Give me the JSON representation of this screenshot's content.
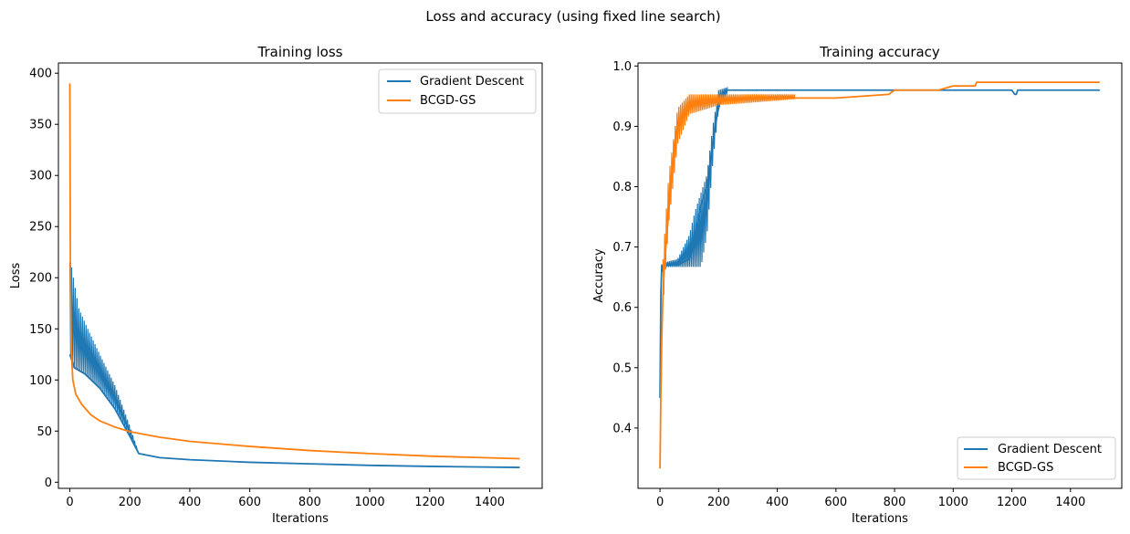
{
  "figure": {
    "suptitle": "Loss and accuracy (using fixed line search)"
  },
  "chart_data": [
    {
      "type": "line",
      "title": "Training loss",
      "xlabel": "Iterations",
      "ylabel": "Loss",
      "xlim": [
        -38,
        1575
      ],
      "ylim": [
        -6,
        410
      ],
      "xticks": [
        0,
        200,
        400,
        600,
        800,
        1000,
        1200,
        1400
      ],
      "yticks": [
        0,
        50,
        100,
        150,
        200,
        250,
        300,
        350,
        400
      ],
      "legend": "top-right",
      "series": [
        {
          "name": "Gradient Descent",
          "color": "#1f77b4",
          "x": [
            0,
            15,
            50,
            100,
            150,
            200,
            230,
            300,
            400,
            600,
            800,
            1000,
            1200,
            1500
          ],
          "y": [
            125,
            112,
            106,
            92,
            72,
            45,
            28,
            24,
            22,
            19.5,
            18,
            16.5,
            15.5,
            14.5
          ],
          "oscillation": {
            "x_end": 230,
            "upper": [
              [
                3,
                215
              ],
              [
                30,
                170
              ],
              [
                60,
                150
              ],
              [
                100,
                125
              ],
              [
                150,
                95
              ],
              [
                200,
                55
              ],
              [
                230,
                28
              ]
            ]
          }
        },
        {
          "name": "BCGD-GS",
          "color": "#ff7f0e",
          "x": [
            0,
            2,
            5,
            10,
            20,
            40,
            70,
            100,
            150,
            200,
            300,
            400,
            600,
            800,
            1000,
            1200,
            1500
          ],
          "y": [
            390,
            200,
            130,
            100,
            86,
            76,
            66,
            60,
            54,
            49.5,
            44,
            40,
            35,
            31,
            28,
            25.5,
            23
          ]
        }
      ]
    },
    {
      "type": "line",
      "title": "Training accuracy",
      "xlabel": "Iterations",
      "ylabel": "Accuracy",
      "xlim": [
        -75,
        1575
      ],
      "ylim": [
        0.3,
        1.005
      ],
      "xticks": [
        0,
        200,
        400,
        600,
        800,
        1000,
        1200,
        1400
      ],
      "yticks": [
        0.4,
        0.5,
        0.6,
        0.7,
        0.8,
        0.9,
        1.0
      ],
      "legend": "bottom-right",
      "series": [
        {
          "name": "Gradient Descent",
          "color": "#1f77b4",
          "x": [
            0,
            3,
            6,
            10,
            20,
            60,
            100,
            120,
            140,
            160,
            180,
            195,
            210,
            220,
            240,
            260,
            600,
            1000,
            1200,
            1210,
            1215,
            1220,
            1500
          ],
          "y": [
            0.45,
            0.62,
            0.67,
            0.66,
            0.67,
            0.67,
            0.68,
            0.72,
            0.77,
            0.8,
            0.87,
            0.92,
            0.95,
            0.96,
            0.96,
            0.96,
            0.96,
            0.96,
            0.96,
            0.953,
            0.953,
            0.96,
            0.96
          ],
          "oscillation": {
            "x_start": 20,
            "x_end": 230,
            "lower": [
              [
                20,
                0.667
              ],
              [
                140,
                0.667
              ],
              [
                160,
                0.72
              ],
              [
                180,
                0.84
              ],
              [
                200,
                0.93
              ],
              [
                230,
                0.955
              ]
            ],
            "upper": [
              [
                20,
                0.675
              ],
              [
                60,
                0.68
              ],
              [
                100,
                0.72
              ],
              [
                120,
                0.76
              ],
              [
                140,
                0.79
              ],
              [
                160,
                0.82
              ],
              [
                180,
                0.9
              ],
              [
                200,
                0.96
              ],
              [
                230,
                0.965
              ]
            ]
          }
        },
        {
          "name": "BCGD-GS",
          "color": "#ff7f0e",
          "x": [
            0,
            3,
            6,
            10,
            15,
            20,
            30,
            40,
            50,
            60,
            80,
            100,
            130,
            160,
            200,
            250,
            300,
            400,
            600,
            780,
            800,
            850,
            900,
            950,
            1000,
            1075,
            1080,
            1500
          ],
          "y": [
            0.333,
            0.46,
            0.55,
            0.62,
            0.67,
            0.7,
            0.76,
            0.82,
            0.87,
            0.9,
            0.92,
            0.93,
            0.94,
            0.94,
            0.94,
            0.945,
            0.947,
            0.947,
            0.947,
            0.953,
            0.96,
            0.96,
            0.96,
            0.96,
            0.967,
            0.967,
            0.973,
            0.973
          ],
          "oscillation": {
            "x_start": 10,
            "x_end": 460,
            "lower": [
              [
                10,
                0.6
              ],
              [
                30,
                0.74
              ],
              [
                60,
                0.87
              ],
              [
                100,
                0.92
              ],
              [
                200,
                0.935
              ],
              [
                460,
                0.945
              ]
            ],
            "upper": [
              [
                10,
                0.68
              ],
              [
                30,
                0.82
              ],
              [
                60,
                0.93
              ],
              [
                100,
                0.953
              ],
              [
                200,
                0.953
              ],
              [
                460,
                0.953
              ]
            ]
          }
        }
      ]
    }
  ]
}
